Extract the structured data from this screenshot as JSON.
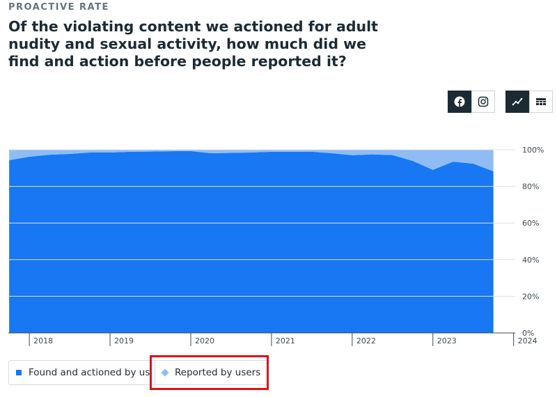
{
  "kicker": "PROACTIVE RATE",
  "chart_data": {
    "type": "stacked-area",
    "title": "Of the violating content we actioned for adult nudity and sexual activity, how much did we find and action before people reported it?",
    "x": [
      2017.75,
      2018,
      2018.25,
      2018.5,
      2018.75,
      2019,
      2019.25,
      2019.5,
      2019.75,
      2020,
      2020.25,
      2020.5,
      2020.75,
      2021,
      2021.25,
      2021.5,
      2021.75,
      2022,
      2022.25,
      2022.5,
      2022.75,
      2023,
      2023.25,
      2023.5,
      2023.75
    ],
    "series": [
      {
        "name": "Found and actioned by us",
        "color": "#1877f2",
        "values": [
          94.3,
          96.2,
          97.3,
          97.7,
          98.5,
          98.5,
          98.9,
          99.0,
          99.2,
          99.3,
          98.1,
          98.3,
          98.5,
          98.9,
          98.9,
          98.9,
          98.1,
          97.0,
          97.5,
          97.1,
          93.9,
          89.0,
          93.5,
          92.4,
          88.2
        ]
      },
      {
        "name": "Reported by users",
        "color": "#8fbcf5",
        "values": [
          5.7,
          3.8,
          2.7,
          2.3,
          1.5,
          1.5,
          1.1,
          1.0,
          0.8,
          0.7,
          1.9,
          1.7,
          1.5,
          1.1,
          1.1,
          1.1,
          1.9,
          3.0,
          2.5,
          2.9,
          6.1,
          11.0,
          6.5,
          7.6,
          11.8
        ]
      }
    ],
    "xlim": [
      2017.74,
      2024.02
    ],
    "xticks": [
      2018,
      2019,
      2020,
      2021,
      2022,
      2023,
      2024
    ],
    "ylim": [
      0,
      100
    ],
    "yticks": [
      {
        "value": 0,
        "label": "0%"
      },
      {
        "value": 20,
        "label": "20%"
      },
      {
        "value": 40,
        "label": "40%"
      },
      {
        "value": 60,
        "label": "60%"
      },
      {
        "value": 80,
        "label": "80%"
      },
      {
        "value": 100,
        "label": "100%"
      }
    ],
    "grid": true
  }
}
